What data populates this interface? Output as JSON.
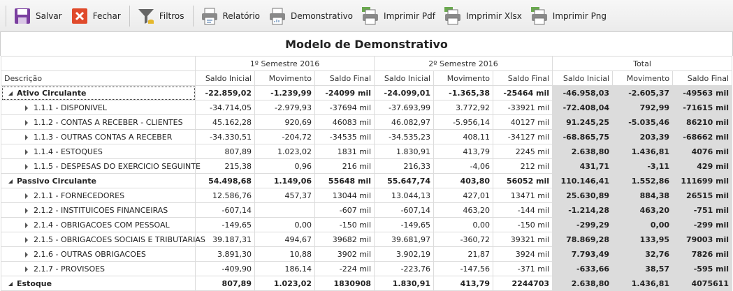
{
  "toolbar": {
    "buttons": [
      "Salvar",
      "Fechar",
      "Filtros",
      "Relatório",
      "Demonstrativo",
      "Imprimir Pdf",
      "Imprimir Xlsx",
      "Imprimir Png"
    ]
  },
  "title": "Modelo de Demonstrativo",
  "table": {
    "groups": [
      "1º Semestre 2016",
      "2º Semestre 2016",
      "Total"
    ],
    "columns": [
      "Descrição",
      "Saldo Inicial",
      "Movimento",
      "Saldo Final",
      "Saldo Inicial",
      "Movimento",
      "Saldo Final",
      "Saldo Inicial",
      "Movimento",
      "Saldo Final"
    ],
    "sections": [
      {
        "label": "Ativo Circulante",
        "cells": [
          "-22.859,02",
          "-1.239,99",
          "-24099 mil",
          "-24.099,01",
          "-1.365,38",
          "-25464 mil",
          "-46.958,03",
          "-2.605,37",
          "-49563 mil"
        ],
        "children": [
          {
            "label": "1.1.1 - DISPONIVEL",
            "cells": [
              "-34.714,05",
              "-2.979,93",
              "-37694 mil",
              "-37.693,99",
              "3.772,92",
              "-33921 mil",
              "-72.408,04",
              "792,99",
              "-71615 mil"
            ]
          },
          {
            "label": "1.1.2 - CONTAS A RECEBER - CLIENTES",
            "cells": [
              "45.162,28",
              "920,69",
              "46083 mil",
              "46.082,97",
              "-5.956,14",
              "40127 mil",
              "91.245,25",
              "-5.035,46",
              "86210 mil"
            ]
          },
          {
            "label": "1.1.3 - OUTRAS CONTAS A RECEBER",
            "cells": [
              "-34.330,51",
              "-204,72",
              "-34535 mil",
              "-34.535,23",
              "408,11",
              "-34127 mil",
              "-68.865,75",
              "203,39",
              "-68662 mil"
            ]
          },
          {
            "label": "1.1.4 - ESTOQUES",
            "cells": [
              "807,89",
              "1.023,02",
              "1831 mil",
              "1.830,91",
              "413,79",
              "2245 mil",
              "2.638,80",
              "1.436,81",
              "4076 mil"
            ]
          },
          {
            "label": "1.1.5 - DESPESAS DO EXERCICIO SEGUINTE",
            "cells": [
              "215,38",
              "0,96",
              "216 mil",
              "216,33",
              "-4,06",
              "212 mil",
              "431,71",
              "-3,11",
              "429 mil"
            ]
          }
        ]
      },
      {
        "label": "Passivo Circulante",
        "cells": [
          "54.498,68",
          "1.149,06",
          "55648 mil",
          "55.647,74",
          "403,80",
          "56052 mil",
          "110.146,41",
          "1.552,86",
          "111699 mil"
        ],
        "children": [
          {
            "label": "2.1.1 - FORNECEDORES",
            "cells": [
              "12.586,76",
              "457,37",
              "13044 mil",
              "13.044,13",
              "427,01",
              "13471 mil",
              "25.630,89",
              "884,38",
              "26515 mil"
            ]
          },
          {
            "label": "2.1.2 - INSTITUICOES FINANCEIRAS",
            "cells": [
              "-607,14",
              null,
              "-607 mil",
              "-607,14",
              "463,20",
              "-144 mil",
              "-1.214,28",
              "463,20",
              "-751 mil"
            ]
          },
          {
            "label": "2.1.4 - OBRIGACOES COM PESSOAL",
            "cells": [
              "-149,65",
              "0,00",
              "-150 mil",
              "-149,65",
              "0,00",
              "-150 mil",
              "-299,29",
              "0,00",
              "-299 mil"
            ]
          },
          {
            "label": "2.1.5 - OBRIGACOES SOCIAIS E TRIBUTARIAS",
            "cells": [
              "39.187,31",
              "494,67",
              "39682 mil",
              "39.681,97",
              "-360,72",
              "39321 mil",
              "78.869,28",
              "133,95",
              "79003 mil"
            ]
          },
          {
            "label": "2.1.6 - OUTRAS OBRIGACOES",
            "cells": [
              "3.891,30",
              "10,88",
              "3902 mil",
              "3.902,19",
              "21,87",
              "3924 mil",
              "7.793,49",
              "32,76",
              "7826 mil"
            ]
          },
          {
            "label": "2.1.7 - PROVISOES",
            "cells": [
              "-409,90",
              "186,14",
              "-224 mil",
              "-223,76",
              "-147,56",
              "-371 mil",
              "-633,66",
              "38,57",
              "-595 mil"
            ]
          }
        ]
      },
      {
        "label": "Estoque",
        "cells": [
          "807,89",
          "1.023,02",
          "1830908",
          "1.830,91",
          "413,79",
          "2244703",
          "2.638,80",
          "1.436,81",
          "4075611"
        ],
        "children": []
      }
    ]
  }
}
